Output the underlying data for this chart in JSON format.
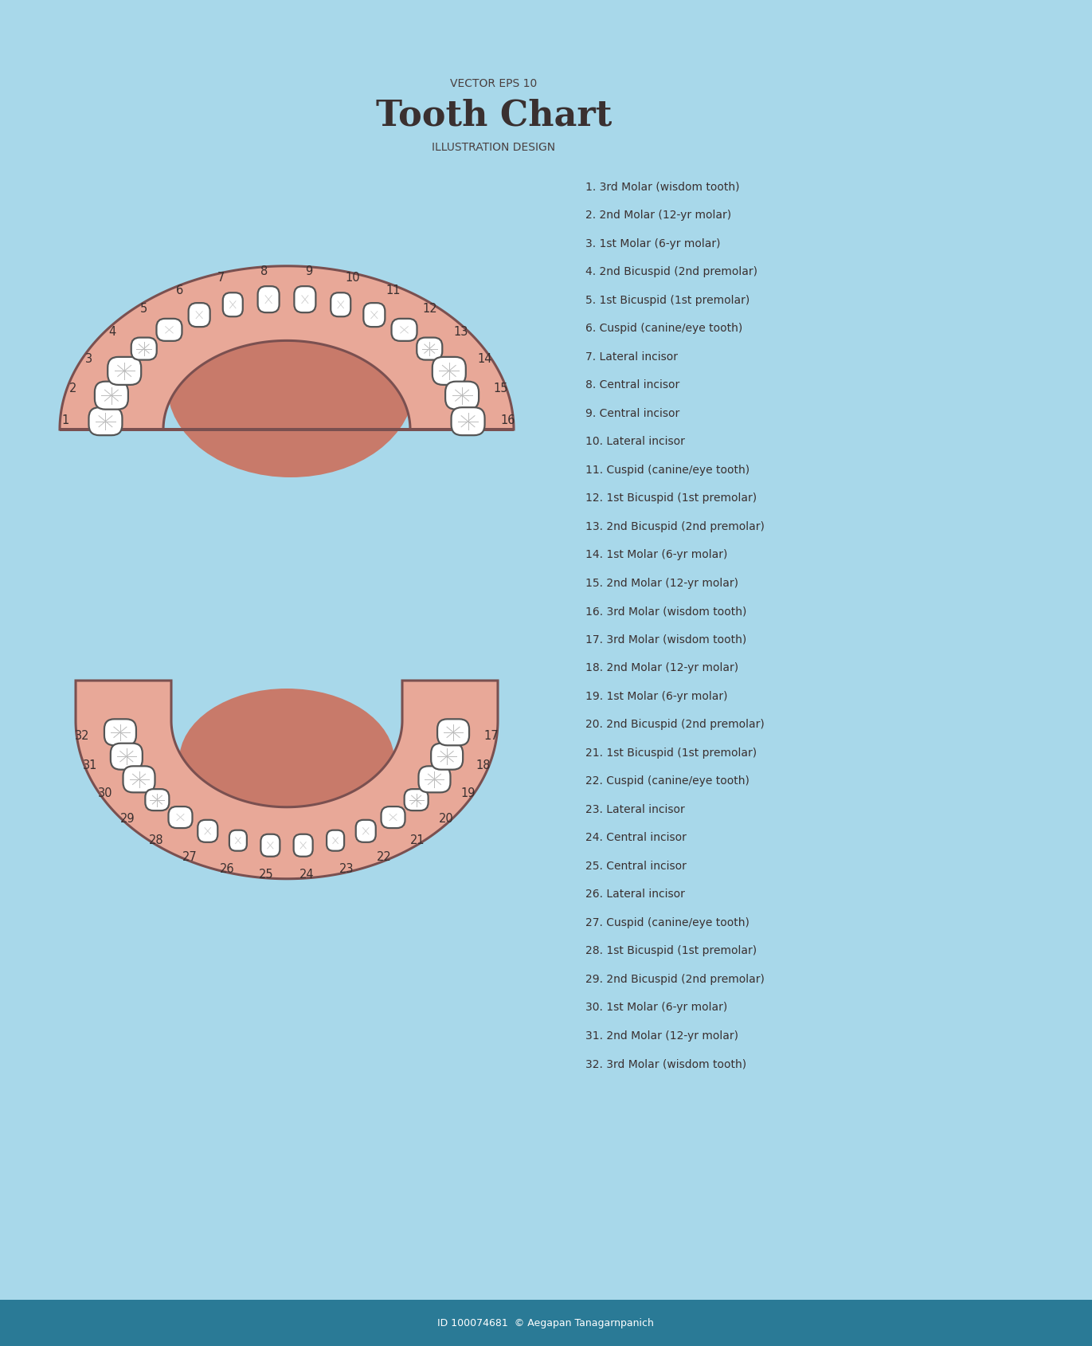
{
  "bg_color": "#a8d8ea",
  "gum_color": "#e8a898",
  "gum_outline": "#7a5050",
  "tooth_color": "#ffffff",
  "tooth_outline": "#555555",
  "text_color": "#4a4040",
  "dark_text": "#3a3030",
  "title_line1": "VECTOR EPS 10",
  "title_line2": "Tooth Chart",
  "title_line3": "ILLUSTRATION DESIGN",
  "bottom_bar_color": "#2a7a96",
  "bottom_text": "ID 100074681  © Aegapan Tanagarnpanich",
  "legend": [
    "1. 3rd Molar (wisdom tooth)",
    "2. 2nd Molar (12-yr molar)",
    "3. 1st Molar (6-yr molar)",
    "4. 2nd Bicuspid (2nd premolar)",
    "5. 1st Bicuspid (1st premolar)",
    "6. Cuspid (canine/eye tooth)",
    "7. Lateral incisor",
    "8. Central incisor",
    "9. Central incisor",
    "10. Lateral incisor",
    "11. Cuspid (canine/eye tooth)",
    "12. 1st Bicuspid (1st premolar)",
    "13. 2nd Bicuspid (2nd premolar)",
    "14. 1st Molar (6-yr molar)",
    "15. 2nd Molar (12-yr molar)",
    "16. 3rd Molar (wisdom tooth)",
    "17. 3rd Molar (wisdom tooth)",
    "18. 2nd Molar (12-yr molar)",
    "19. 1st Molar (6-yr molar)",
    "20. 2nd Bicuspid (2nd premolar)",
    "21. 1st Bicuspid (1st premolar)",
    "22. Cuspid (canine/eye tooth)",
    "23. Lateral incisor",
    "24. Central incisor",
    "25. Central incisor",
    "26. Lateral incisor",
    "27. Cuspid (canine/eye tooth)",
    "28. 1st Bicuspid (1st premolar)",
    "29. 2nd Bicuspid (2nd premolar)",
    "30. 1st Molar (6-yr molar)",
    "31. 2nd Molar (12-yr molar)",
    "32. 3rd Molar (wisdom tooth)"
  ],
  "upper_labels": [
    "1",
    "2",
    "3",
    "4",
    "5",
    "6",
    "7",
    "8",
    "9",
    "10",
    "11",
    "12",
    "13",
    "14",
    "15",
    "16"
  ],
  "lower_labels": [
    "32",
    "31",
    "30",
    "29",
    "28",
    "27",
    "26",
    "25",
    "24",
    "23",
    "22",
    "21",
    "20",
    "19",
    "18",
    "17"
  ]
}
